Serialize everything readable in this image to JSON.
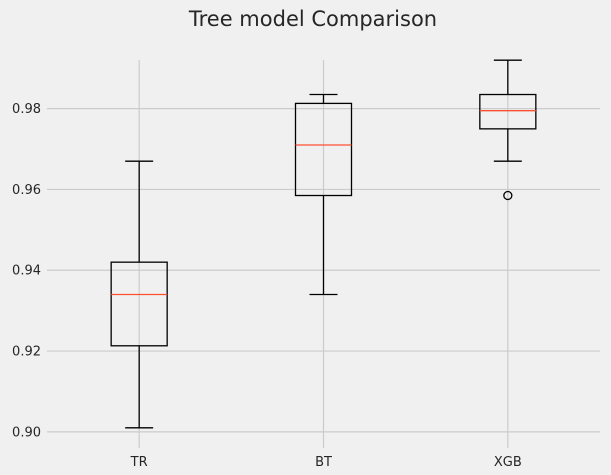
{
  "chart_data": {
    "type": "box",
    "title": "Tree model Comparison",
    "xlabel": "",
    "ylabel": "",
    "categories": [
      "TR",
      "BT",
      "XGB"
    ],
    "boxes": [
      {
        "category": "TR",
        "whisker_low": 0.901,
        "q1": 0.9213,
        "median": 0.934,
        "q3": 0.942,
        "whisker_high": 0.967,
        "outliers": []
      },
      {
        "category": "BT",
        "whisker_low": 0.934,
        "q1": 0.9585,
        "median": 0.971,
        "q3": 0.9813,
        "whisker_high": 0.9835,
        "outliers": []
      },
      {
        "category": "XGB",
        "whisker_low": 0.967,
        "q1": 0.975,
        "median": 0.9795,
        "q3": 0.9835,
        "whisker_high": 0.992,
        "outliers": [
          0.9585
        ]
      }
    ],
    "ylim": [
      0.896,
      0.9965
    ],
    "yticks": [
      0.9,
      0.92,
      0.94,
      0.96,
      0.98
    ],
    "ytick_labels": [
      "0.90",
      "0.92",
      "0.94",
      "0.96",
      "0.98"
    ],
    "grid": true,
    "colors": {
      "background": "#f0f0f0",
      "grid": "#cbcbcb",
      "box": "#000000",
      "median": "#fc4f30",
      "text": "#262626"
    }
  }
}
